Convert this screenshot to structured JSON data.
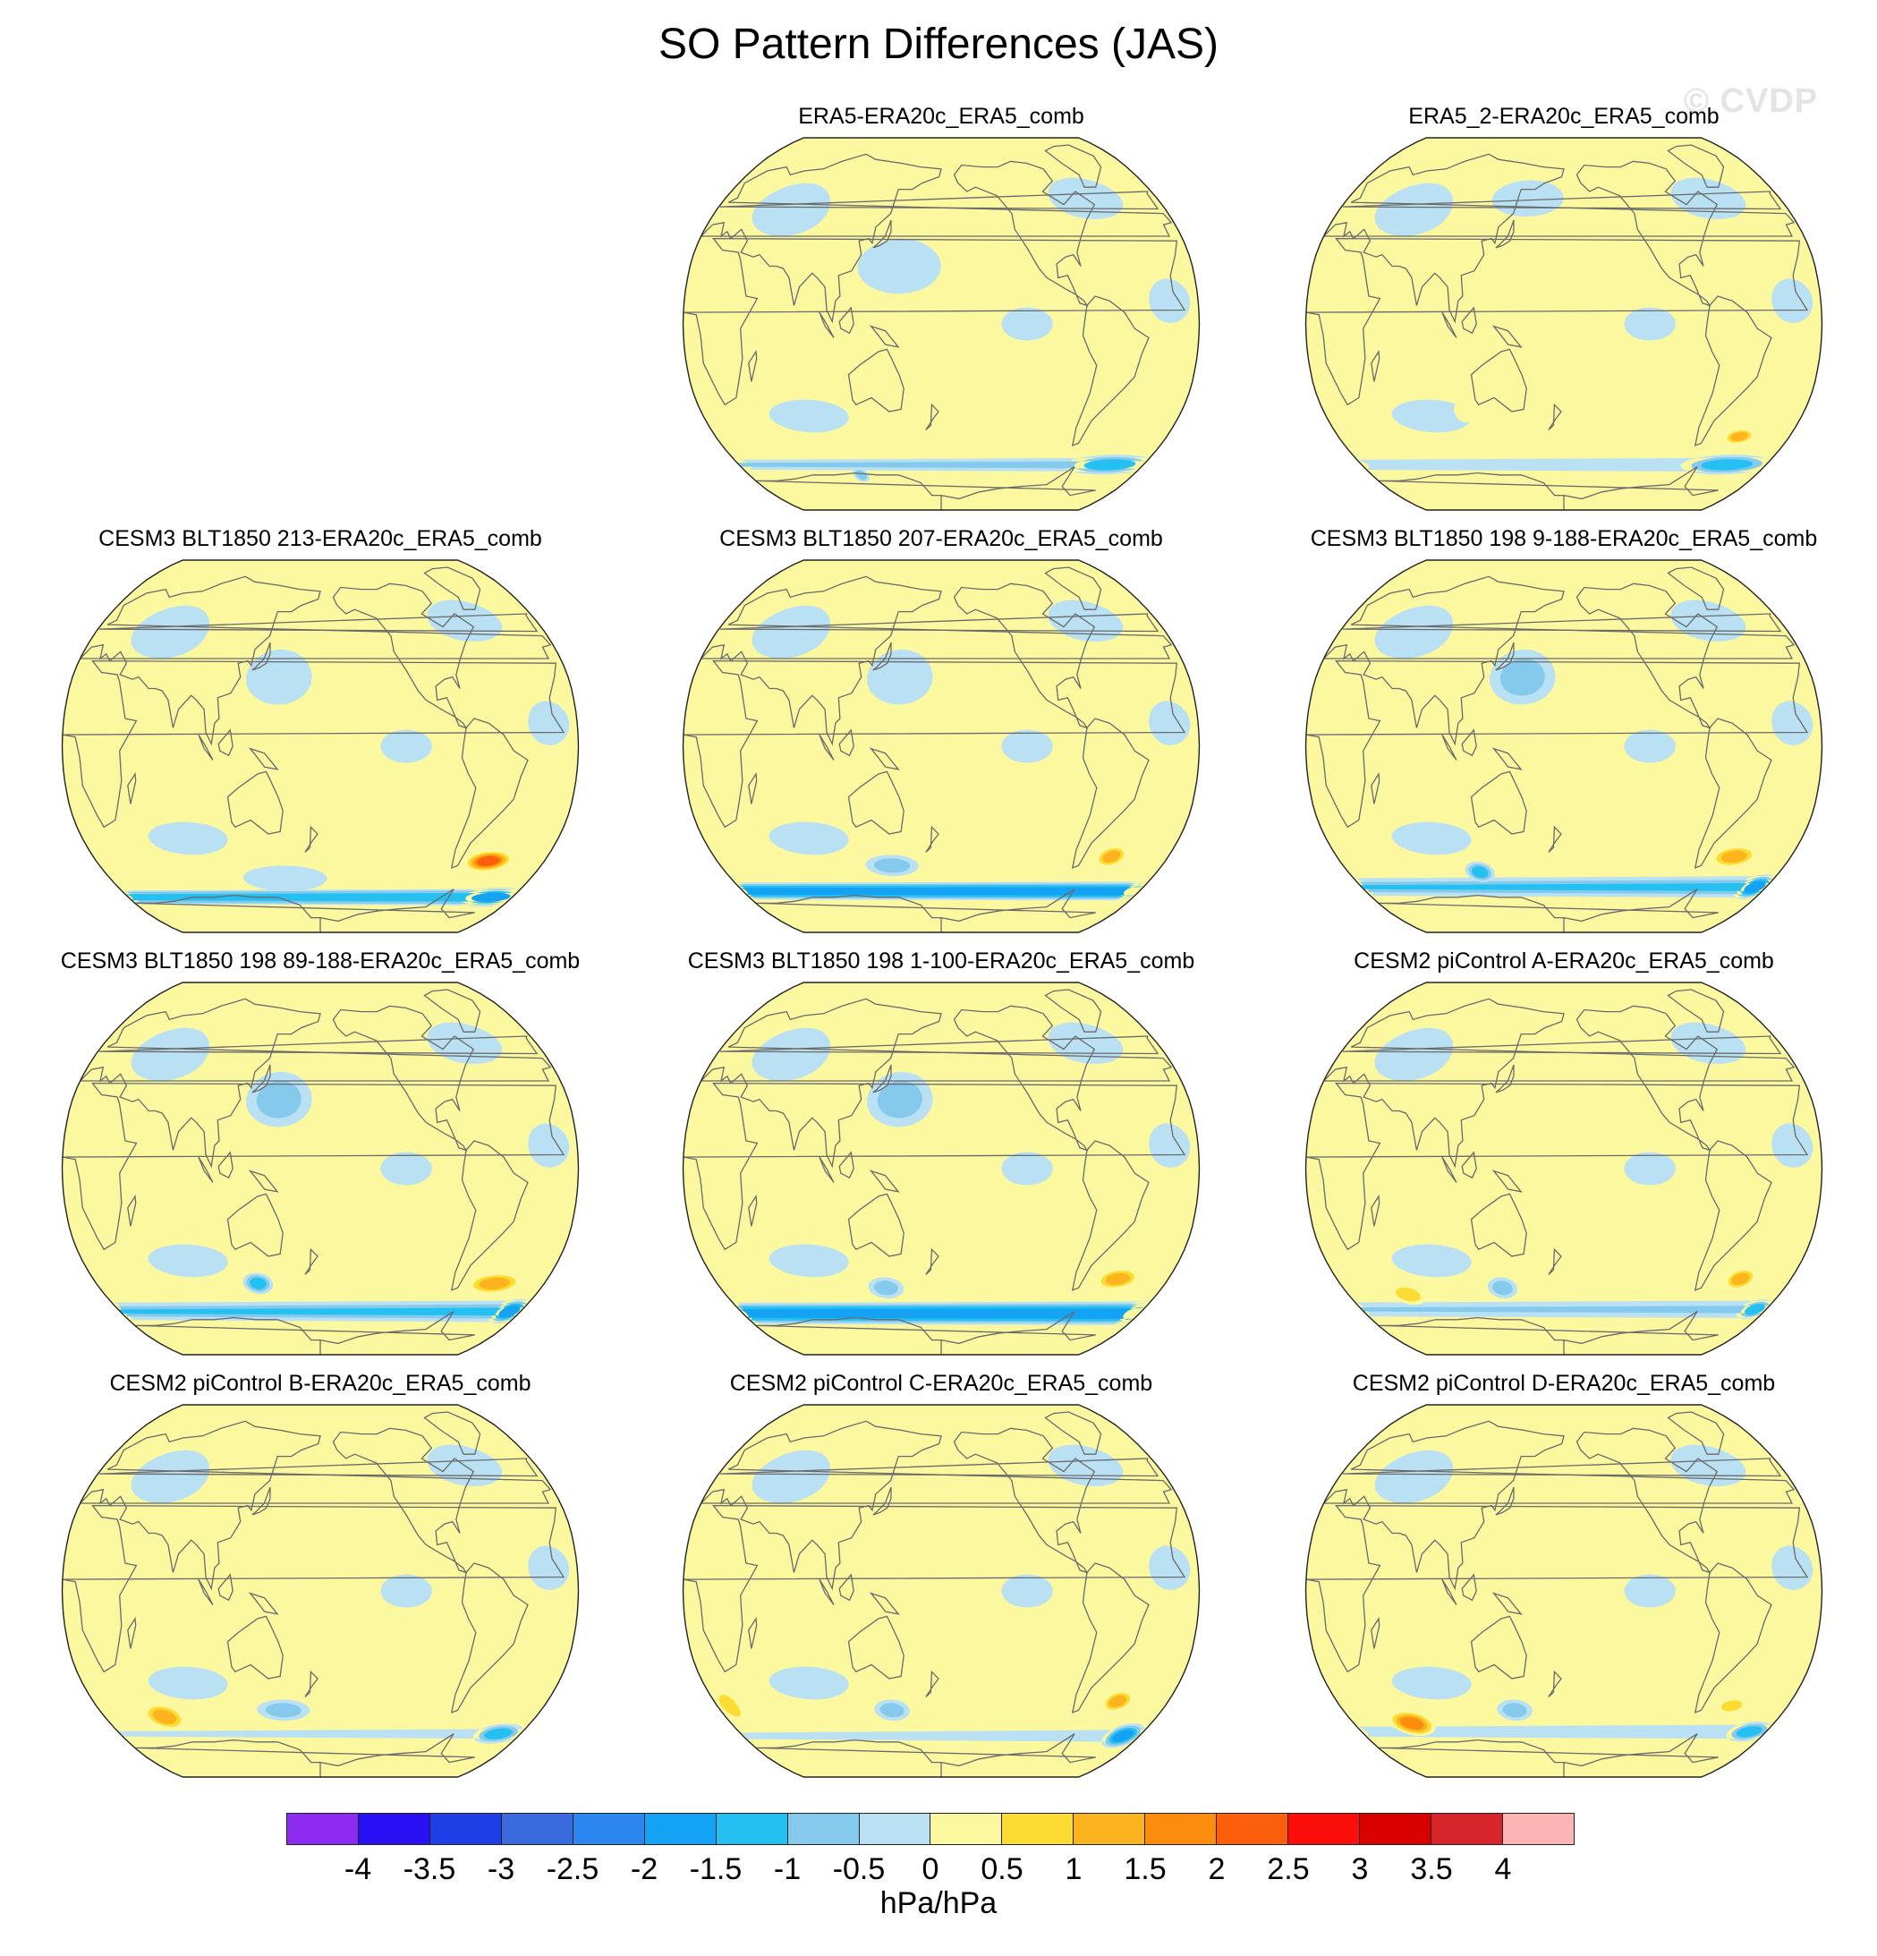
{
  "chart_data": {
    "type": "heatmap",
    "title": "SO Pattern Differences (JAS)",
    "watermark": "© CVDP",
    "projection": "Robinson global map, Pacific-centered",
    "colorbar": {
      "units": "hPa/hPa",
      "ticks": [
        "-4",
        "-3.5",
        "-3",
        "-2.5",
        "-2",
        "-1.5",
        "-1",
        "-0.5",
        "0",
        "0.5",
        "1",
        "1.5",
        "2",
        "2.5",
        "3",
        "3.5",
        "4"
      ],
      "colors": [
        "#8d2cf0",
        "#2a11f5",
        "#1e3fe6",
        "#3a6bde",
        "#2b86f0",
        "#14a2f4",
        "#25c0f2",
        "#85caec",
        "#b9e1f3",
        "#fcf89f",
        "#fcdc32",
        "#fcb41e",
        "#fc8c0c",
        "#fc5f0b",
        "#fc0f0b",
        "#d90000",
        "#d6262b",
        "#fcb4b4"
      ]
    },
    "panels": [
      {
        "title": "ERA5-ERA20c_ERA5_comb",
        "blobs": [
          {
            "lon": -30,
            "lat": -62,
            "rx": 34,
            "ry": 4,
            "v": -1.5
          },
          {
            "lon": 105,
            "lat": -67,
            "rx": 6,
            "ry": 3,
            "v": -1.0
          },
          {
            "lon": -45,
            "lat": -49,
            "rx": 10,
            "ry": 3,
            "v": 0.5
          },
          {
            "lon": 150,
            "lat": 25,
            "rx": 25,
            "ry": 10,
            "v": -0.5
          }
        ]
      },
      {
        "title": "ERA5_2-ERA20c_ERA5_comb",
        "blobs": [
          {
            "lon": -35,
            "lat": -62,
            "rx": 34,
            "ry": 4,
            "v": -1.5
          },
          {
            "lon": -40,
            "lat": -49,
            "rx": 10,
            "ry": 3,
            "v": 1.5
          },
          {
            "lon": 150,
            "lat": 55,
            "rx": 25,
            "ry": 7,
            "v": -0.5
          },
          {
            "lon": 105,
            "lat": -38,
            "rx": 6,
            "ry": 4,
            "v": 0.5
          }
        ]
      },
      {
        "title": "CESM3 BLT1850 213-ERA20c_ERA5_comb",
        "blobs": [
          {
            "lon": -45,
            "lat": -50,
            "rx": 16,
            "ry": 4,
            "v": 2.5
          },
          {
            "lon": -20,
            "lat": -67,
            "rx": 30,
            "ry": 4,
            "v": -2.0
          },
          {
            "lon": 150,
            "lat": -58,
            "rx": 30,
            "ry": 5,
            "v": -0.5
          },
          {
            "lon": 150,
            "lat": 30,
            "rx": 20,
            "ry": 10,
            "v": -0.5
          }
        ]
      },
      {
        "title": "CESM3 BLT1850 207-ERA20c_ERA5_comb",
        "blobs": [
          {
            "lon": -45,
            "lat": -48,
            "rx": 10,
            "ry": 4,
            "v": 1.5
          },
          {
            "lon": -5,
            "lat": -64,
            "rx": 14,
            "ry": 4,
            "v": -2.0
          },
          {
            "lon": 140,
            "lat": -52,
            "rx": 18,
            "ry": 4,
            "v": -1.0
          },
          {
            "lon": 150,
            "lat": 30,
            "rx": 20,
            "ry": 10,
            "v": -0.5
          }
        ]
      },
      {
        "title": "CESM3 BLT1850 198 9-188-ERA20c_ERA5_comb",
        "blobs": [
          {
            "lon": -45,
            "lat": -48,
            "rx": 15,
            "ry": 4,
            "v": 1.5
          },
          {
            "lon": -10,
            "lat": -62,
            "rx": 14,
            "ry": 5,
            "v": -2.0
          },
          {
            "lon": 110,
            "lat": -55,
            "rx": 10,
            "ry": 4,
            "v": -1.5
          },
          {
            "lon": 150,
            "lat": 30,
            "rx": 20,
            "ry": 10,
            "v": -1.0
          }
        ]
      },
      {
        "title": "CESM3 BLT1850 198 89-188-ERA20c_ERA5_comb",
        "blobs": [
          {
            "lon": -40,
            "lat": -50,
            "rx": 18,
            "ry": 4,
            "v": 1.5
          },
          {
            "lon": -10,
            "lat": -63,
            "rx": 14,
            "ry": 5,
            "v": -2.0
          },
          {
            "lon": 130,
            "lat": -50,
            "rx": 10,
            "ry": 4,
            "v": -1.5
          },
          {
            "lon": 150,
            "lat": 30,
            "rx": 20,
            "ry": 10,
            "v": -1.0
          }
        ]
      },
      {
        "title": "CESM3 BLT1850 198 1-100-ERA20c_ERA5_comb",
        "blobs": [
          {
            "lon": -40,
            "lat": -48,
            "rx": 14,
            "ry": 4,
            "v": 1.5
          },
          {
            "lon": -5,
            "lat": -64,
            "rx": 14,
            "ry": 5,
            "v": -2.0
          },
          {
            "lon": 135,
            "lat": -52,
            "rx": 12,
            "ry": 4,
            "v": -1.0
          },
          {
            "lon": 150,
            "lat": 30,
            "rx": 20,
            "ry": 10,
            "v": -1.0
          }
        ]
      },
      {
        "title": "CESM2 piControl A-ERA20c_ERA5_comb",
        "blobs": [
          {
            "lon": -40,
            "lat": -48,
            "rx": 10,
            "ry": 4,
            "v": 1.5
          },
          {
            "lon": -10,
            "lat": -62,
            "rx": 12,
            "ry": 4,
            "v": -1.5
          },
          {
            "lon": 130,
            "lat": -52,
            "rx": 10,
            "ry": 4,
            "v": -1.0
          },
          {
            "lon": 50,
            "lat": -55,
            "rx": 12,
            "ry": 4,
            "v": 1.0
          }
        ]
      },
      {
        "title": "CESM2 piControl B-ERA20c_ERA5_comb",
        "blobs": [
          {
            "lon": -45,
            "lat": -48,
            "rx": 12,
            "ry": 4,
            "v": 0.5
          },
          {
            "lon": -20,
            "lat": -63,
            "rx": 18,
            "ry": 4,
            "v": -1.5
          },
          {
            "lon": 150,
            "lat": -52,
            "rx": 18,
            "ry": 4,
            "v": -1.0
          },
          {
            "lon": 50,
            "lat": -55,
            "rx": 14,
            "ry": 5,
            "v": 1.5
          }
        ]
      },
      {
        "title": "CESM2 piControl C-ERA20c_ERA5_comb",
        "blobs": [
          {
            "lon": -40,
            "lat": -48,
            "rx": 10,
            "ry": 4,
            "v": 1.5
          },
          {
            "lon": -15,
            "lat": -64,
            "rx": 14,
            "ry": 5,
            "v": -2.0
          },
          {
            "lon": 140,
            "lat": -52,
            "rx": 12,
            "ry": 4,
            "v": -1.0
          },
          {
            "lon": 10,
            "lat": -50,
            "rx": 8,
            "ry": 6,
            "v": 1.0
          }
        ]
      },
      {
        "title": "CESM2 piControl D-ERA20c_ERA5_comb",
        "blobs": [
          {
            "lon": -45,
            "lat": -50,
            "rx": 10,
            "ry": 3,
            "v": 1.0
          },
          {
            "lon": -15,
            "lat": -62,
            "rx": 16,
            "ry": 4,
            "v": -1.5
          },
          {
            "lon": 140,
            "lat": -52,
            "rx": 12,
            "ry": 4,
            "v": -1.0
          },
          {
            "lon": 50,
            "lat": -58,
            "rx": 16,
            "ry": 5,
            "v": 2.0
          }
        ]
      }
    ]
  }
}
